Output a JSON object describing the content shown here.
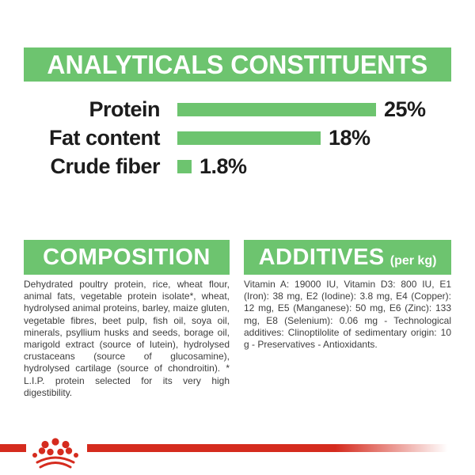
{
  "colors": {
    "accent_green": "#6dc46f",
    "brand_red": "#d52b1e",
    "body_text": "#3d3d3d",
    "label_black": "#1c1c1c",
    "background": "#ffffff"
  },
  "header": {
    "title": "ANALYTICALS CONSTITUENTS"
  },
  "chart_data": {
    "type": "bar",
    "orientation": "horizontal",
    "title": "ANALYTICALS CONSTITUENTS",
    "categories": [
      "Protein",
      "Fat content",
      "Crude fiber"
    ],
    "values": [
      25,
      18,
      1.8
    ],
    "value_labels": [
      "25%",
      "18%",
      "1.8%"
    ],
    "unit": "%",
    "xlim": [
      0,
      25
    ],
    "bar_color": "#6dc46f",
    "grid": false,
    "legend": false
  },
  "composition": {
    "title": "COMPOSITION",
    "body": "Dehydrated poultry protein, rice, wheat flour, animal fats, vegetable protein isolate*, wheat, hydrolysed animal proteins, barley, maize gluten, vegetable fibres, beet pulp, fish oil, soya oil, minerals, psyllium husks and seeds, borage oil, marigold extract (source of lutein), hydrolysed crustaceans (source of glucosamine), hydrolysed cartilage (source of chondroitin). * L.I.P. protein selected for its very high digestibility."
  },
  "additives": {
    "title": "ADDITIVES",
    "unit": "(per kg)",
    "body": "Vitamin A: 19000 IU, Vitamin D3: 800 IU, E1 (Iron): 38 mg, E2 (Iodine): 3.8 mg, E4 (Copper): 12 mg, E5 (Manganese): 50 mg, E6 (Zinc): 133 mg, E8 (Selenium): 0.06 mg - Technological additives: Clinoptilolite of sedimentary origin: 10 g - Preservatives - Antioxidants."
  },
  "footer": {
    "logo": "royal-canin-crown",
    "stripe_color": "#d52b1e"
  }
}
